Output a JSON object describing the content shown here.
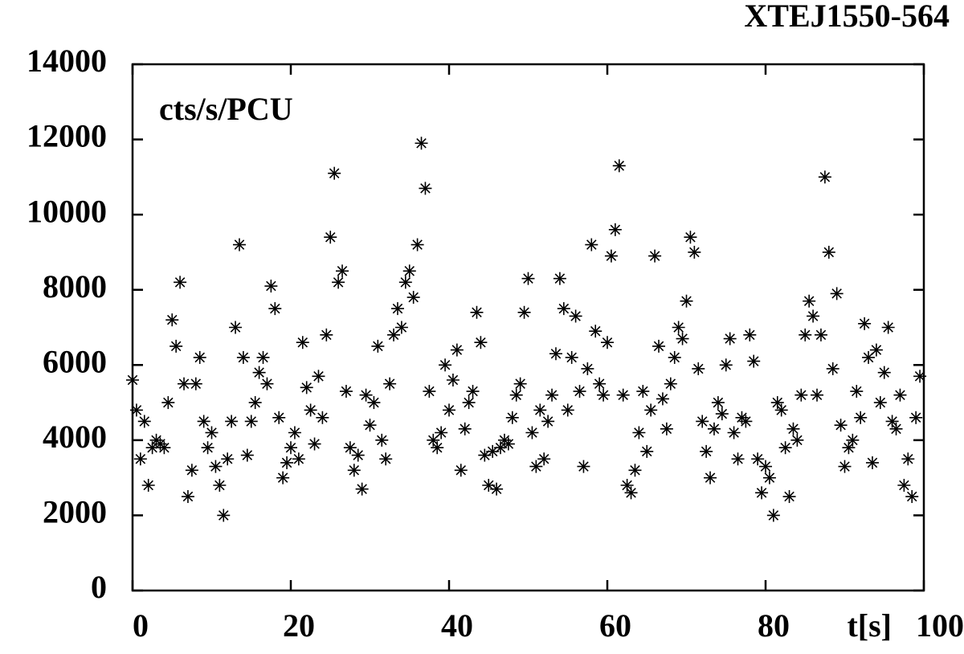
{
  "chart_data": {
    "type": "scatter",
    "title": "XTEJ1550-564",
    "annotation": "cts/s/PCU",
    "xlabel": "t[s]",
    "xlim": [
      0,
      100
    ],
    "ylim": [
      0,
      14000
    ],
    "xticks": [
      0,
      20,
      40,
      60,
      80,
      100
    ],
    "yticks": [
      0,
      2000,
      4000,
      6000,
      8000,
      10000,
      12000,
      14000
    ],
    "color": "#000000",
    "marker": "asterisk",
    "x": [
      0,
      0.5,
      1,
      1.5,
      2,
      2.5,
      3,
      3.5,
      4,
      4.5,
      5,
      5.5,
      6,
      6.5,
      7,
      7.5,
      8,
      8.5,
      9,
      9.5,
      10,
      10.5,
      11,
      11.5,
      12,
      12.5,
      13,
      13.5,
      14,
      14.5,
      15,
      15.5,
      16,
      16.5,
      17,
      17.5,
      18,
      18.5,
      19,
      19.5,
      20,
      20.5,
      21,
      21.5,
      22,
      22.5,
      23,
      23.5,
      24,
      24.5,
      25,
      25.5,
      26,
      26.5,
      27,
      27.5,
      28,
      28.5,
      29,
      29.5,
      30,
      30.5,
      31,
      31.5,
      32,
      32.5,
      33,
      33.5,
      34,
      34.5,
      35,
      35.5,
      36,
      36.5,
      37,
      37.5,
      38,
      38.5,
      39,
      39.5,
      40,
      40.5,
      41,
      41.5,
      42,
      42.5,
      43,
      43.5,
      44,
      44.5,
      45,
      45.5,
      46,
      46.5,
      47,
      47.5,
      48,
      48.5,
      49,
      49.5,
      50,
      50.5,
      51,
      51.5,
      52,
      52.5,
      53,
      53.5,
      54,
      54.5,
      55,
      55.5,
      56,
      56.5,
      57,
      57.5,
      58,
      58.5,
      59,
      59.5,
      60,
      60.5,
      61,
      61.5,
      62,
      62.5,
      63,
      63.5,
      64,
      64.5,
      65,
      65.5,
      66,
      66.5,
      67,
      67.5,
      68,
      68.5,
      69,
      69.5,
      70,
      70.5,
      71,
      71.5,
      72,
      72.5,
      73,
      73.5,
      74,
      74.5,
      75,
      75.5,
      76,
      76.5,
      77,
      77.5,
      78,
      78.5,
      79,
      79.5,
      80,
      80.5,
      81,
      81.5,
      82,
      82.5,
      83,
      83.5,
      84,
      84.5,
      85,
      85.5,
      86,
      86.5,
      87,
      87.5,
      88,
      88.5,
      89,
      89.5,
      90,
      90.5,
      91,
      91.5,
      92,
      92.5,
      93,
      93.5,
      94,
      94.5,
      95,
      95.5,
      96,
      96.5,
      97,
      97.5,
      98,
      98.5,
      99,
      99.5
    ],
    "values": [
      5600,
      4800,
      3500,
      4500,
      2800,
      3800,
      4000,
      3900,
      3800,
      5000,
      7200,
      6500,
      8200,
      5500,
      2500,
      3200,
      5500,
      6200,
      4500,
      3800,
      4200,
      3300,
      2800,
      2000,
      3500,
      4500,
      7000,
      9200,
      6200,
      3600,
      4500,
      5000,
      5800,
      6200,
      5500,
      8100,
      7500,
      4600,
      3000,
      3400,
      3800,
      4200,
      3500,
      6600,
      5400,
      4800,
      3900,
      5700,
      4600,
      6800,
      9400,
      11100,
      8200,
      8500,
      5300,
      3800,
      3200,
      3600,
      2700,
      5200,
      4400,
      5000,
      6500,
      4000,
      3500,
      5500,
      6800,
      7500,
      7000,
      8200,
      8500,
      7800,
      9200,
      11900,
      10700,
      5300,
      4000,
      3800,
      4200,
      6000,
      4800,
      5600,
      6400,
      3200,
      4300,
      5000,
      5300,
      7400,
      6600,
      3600,
      2800,
      3700,
      2700,
      3800,
      4000,
      3900,
      4600,
      5200,
      5500,
      7400,
      8300,
      4200,
      3300,
      4800,
      3500,
      4500,
      5200,
      6300,
      8300,
      7500,
      4800,
      6200,
      7300,
      5300,
      3300,
      5900,
      9200,
      6900,
      5500,
      5200,
      6600,
      8900,
      9600,
      11300,
      5200,
      2800,
      2600,
      3200,
      4200,
      5300,
      3700,
      4800,
      8900,
      6500,
      5100,
      4300,
      5500,
      6200,
      7000,
      6700,
      7700,
      9400,
      9000,
      5900,
      4500,
      3700,
      3000,
      4300,
      5000,
      4700,
      6000,
      6700,
      4200,
      3500,
      4600,
      4500,
      6800,
      6100,
      3500,
      2600,
      3300,
      3000,
      2000,
      5000,
      4800,
      3800,
      2500,
      4300,
      4000,
      5200,
      6800,
      7700,
      7300,
      5200,
      6800,
      11000,
      9000,
      5900,
      7900,
      4400,
      3300,
      3800,
      4000,
      5300,
      4600,
      7100,
      6200,
      3400,
      6400,
      5000,
      5800,
      7000,
      4500,
      4300,
      5200,
      2800,
      3500,
      2500,
      4600,
      5700
    ]
  }
}
